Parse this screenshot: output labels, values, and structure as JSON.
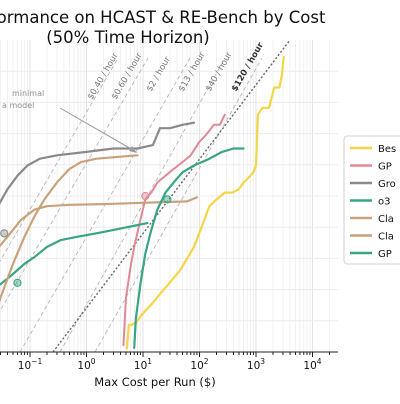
{
  "chart_data": {
    "type": "line",
    "title_line1": "Performance on HCAST & RE-Bench by Cost",
    "title_line2": "(50% Time Horizon)",
    "xlabel": "Max Cost per Run ($)",
    "ylabel": "",
    "xscale": "log",
    "xlim": [
      0.005,
      25000
    ],
    "x_ticks": [
      {
        "value": 0.1,
        "base": "10",
        "exp": "−1"
      },
      {
        "value": 1,
        "base": "10",
        "exp": "0"
      },
      {
        "value": 10,
        "base": "10",
        "exp": "1"
      },
      {
        "value": 100,
        "base": "10",
        "exp": "2"
      },
      {
        "value": 1000,
        "base": "10",
        "exp": "3"
      },
      {
        "value": 10000,
        "base": "10",
        "exp": "4"
      }
    ],
    "grid": true,
    "legend_position": "right",
    "legend_visible": [
      {
        "label": "Bes",
        "color": "#f5d547"
      },
      {
        "label": "GP",
        "color": "#e08a96"
      },
      {
        "label": "Gro",
        "color": "#8a8a8a"
      },
      {
        "label": "o3",
        "color": "#3aa585"
      },
      {
        "label": "Cla",
        "color": "#c9a27c"
      },
      {
        "label": "Cla",
        "color": "#c9a27c"
      },
      {
        "label": "GP",
        "color": "#3aa585"
      }
    ],
    "cost_rate_lines": [
      {
        "label": "$0.40 / hour",
        "style": "dashed"
      },
      {
        "label": "$0.60 / hour",
        "style": "dashed"
      },
      {
        "label": "$2 / hour",
        "style": "dashed"
      },
      {
        "label": "$13 / hour",
        "style": "dashed"
      },
      {
        "label": "$40 / hour",
        "style": "dashed"
      },
      {
        "label": "$120 / hour",
        "style": "dotted-bold"
      }
    ],
    "annotation_lines": [
      "minimal",
      "a model"
    ],
    "colors": {
      "best": "#f5d547",
      "gpt_pink": "#e08a96",
      "grok": "#8a8a8a",
      "o3": "#3aa585",
      "claude": "#c9a27c",
      "gpt_green": "#3aa585",
      "rate_line": "#b5b5b5",
      "rate_line_bold": "#666666"
    },
    "series": [
      {
        "key": "best",
        "color": "#f5d547",
        "width": 2.2,
        "points": [
          [
            5.2,
            0.5
          ],
          [
            5.6,
            4.0
          ],
          [
            6.3,
            4.0
          ],
          [
            7.8,
            4.5
          ],
          [
            9.5,
            5.5
          ],
          [
            14,
            7.0
          ],
          [
            25,
            9.5
          ],
          [
            45,
            12
          ],
          [
            80,
            15.5
          ],
          [
            110,
            18.5
          ],
          [
            150,
            21.5
          ],
          [
            200,
            22.5
          ],
          [
            280,
            23.5
          ],
          [
            380,
            23.5
          ],
          [
            500,
            24
          ],
          [
            600,
            25
          ],
          [
            700,
            25.5
          ],
          [
            800,
            26
          ],
          [
            900,
            26.5
          ],
          [
            1000,
            27.5
          ],
          [
            1080,
            35
          ],
          [
            1300,
            36
          ],
          [
            1700,
            36
          ],
          [
            2100,
            39
          ],
          [
            2600,
            39
          ],
          [
            2900,
            41
          ],
          [
            3000,
            42.5
          ],
          [
            3100,
            43.5
          ]
        ]
      },
      {
        "key": "gpt_pink",
        "color": "#e08a96",
        "width": 2,
        "points": [
          [
            4.5,
            1.0
          ],
          [
            5.0,
            8.0
          ],
          [
            6.0,
            12.5
          ],
          [
            7.0,
            15.5
          ],
          [
            9.0,
            19.5
          ],
          [
            11,
            22.5
          ],
          [
            14,
            23.5
          ],
          [
            18,
            25
          ],
          [
            25,
            26
          ],
          [
            35,
            27
          ],
          [
            50,
            28
          ],
          [
            70,
            29
          ],
          [
            100,
            31
          ],
          [
            130,
            32
          ],
          [
            180,
            33.5
          ],
          [
            230,
            33.5
          ],
          [
            280,
            35
          ]
        ]
      },
      {
        "key": "grok",
        "color": "#8a8a8a",
        "width": 2.2,
        "points": [
          [
            0.003,
            12
          ],
          [
            0.005,
            13
          ],
          [
            0.008,
            15
          ],
          [
            0.015,
            18
          ],
          [
            0.025,
            21
          ],
          [
            0.04,
            24
          ],
          [
            0.06,
            26
          ],
          [
            0.09,
            27.5
          ],
          [
            0.15,
            28.5
          ],
          [
            0.3,
            29
          ],
          [
            1,
            29.5
          ],
          [
            3,
            30
          ],
          [
            8,
            30
          ],
          [
            15,
            30.5
          ],
          [
            20,
            33
          ],
          [
            30,
            33
          ],
          [
            50,
            33.5
          ],
          [
            80,
            33.8
          ]
        ]
      },
      {
        "key": "o3",
        "color": "#3aa585",
        "width": 2.2,
        "points": [
          [
            0.003,
            6
          ],
          [
            0.007,
            7.5
          ],
          [
            0.015,
            8.5
          ],
          [
            0.03,
            10
          ],
          [
            0.05,
            11.5
          ],
          [
            0.08,
            13
          ],
          [
            0.12,
            14
          ],
          [
            0.2,
            15.5
          ],
          [
            0.35,
            16.5
          ],
          [
            0.7,
            17
          ],
          [
            1.5,
            17.5
          ],
          [
            3,
            18
          ],
          [
            6,
            18.5
          ],
          [
            12,
            19
          ]
        ]
      },
      {
        "key": "claude_a",
        "color": "#c9a27c",
        "width": 2.2,
        "points": [
          [
            0.012,
            0.8
          ],
          [
            0.018,
            3.0
          ],
          [
            0.03,
            8
          ],
          [
            0.05,
            13
          ],
          [
            0.08,
            17
          ],
          [
            0.12,
            20
          ],
          [
            0.18,
            22.5
          ],
          [
            0.3,
            25
          ],
          [
            0.5,
            27
          ],
          [
            0.8,
            28
          ],
          [
            1.5,
            28.5
          ],
          [
            4,
            28.8
          ],
          [
            8,
            29
          ]
        ]
      },
      {
        "key": "claude_b",
        "color": "#c9a27c",
        "width": 2.2,
        "points": [
          [
            0.003,
            2.0
          ],
          [
            0.004,
            5
          ],
          [
            0.006,
            8
          ],
          [
            0.01,
            11
          ],
          [
            0.02,
            14
          ],
          [
            0.04,
            17
          ],
          [
            0.07,
            19.5
          ],
          [
            0.12,
            21
          ],
          [
            0.2,
            21.5
          ],
          [
            0.5,
            21.7
          ],
          [
            2,
            21.8
          ],
          [
            10,
            22
          ],
          [
            60,
            22.2
          ],
          [
            90,
            22.8
          ]
        ]
      },
      {
        "key": "gpt_green",
        "color": "#3aa585",
        "width": 2.2,
        "points": [
          [
            7,
            0.6
          ],
          [
            7.5,
            5.0
          ],
          [
            9,
            10
          ],
          [
            11,
            14.5
          ],
          [
            14,
            18
          ],
          [
            18,
            21
          ],
          [
            25,
            23.5
          ],
          [
            35,
            25
          ],
          [
            50,
            26.5
          ],
          [
            80,
            27.5
          ],
          [
            150,
            28.5
          ],
          [
            250,
            29.5
          ],
          [
            400,
            30
          ],
          [
            600,
            30
          ]
        ]
      }
    ],
    "markers": [
      {
        "x": 0.035,
        "y": 17.5,
        "color": "#8a8a8a"
      },
      {
        "x": 0.022,
        "y": 16.0,
        "color": "#c9a27c"
      },
      {
        "x": 0.06,
        "y": 10.2,
        "color": "#3aa585"
      },
      {
        "x": 11,
        "y": 23.0,
        "color": "#e08a96"
      },
      {
        "x": 27,
        "y": 22.5,
        "color": "#3aa585"
      }
    ]
  }
}
